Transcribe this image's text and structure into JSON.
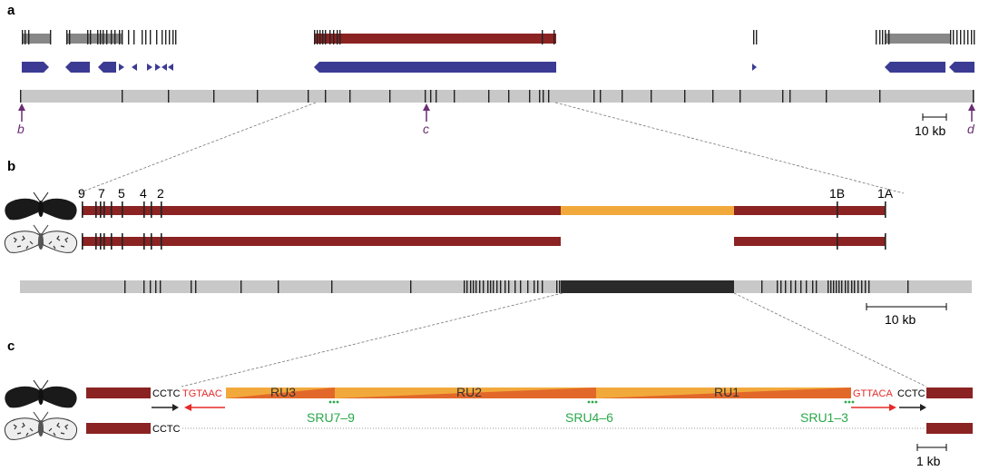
{
  "panels": {
    "a": "a",
    "b": "b",
    "c": "c"
  },
  "panel_a": {
    "markers": {
      "b": "b",
      "c": "c",
      "d": "d"
    },
    "scale_label": "10 kb"
  },
  "panel_b": {
    "exon_labels": {
      "e9": "9",
      "e7": "7",
      "e5": "5",
      "e4": "4",
      "e2": "2",
      "e1b": "1B",
      "e1a": "1A"
    },
    "scale_label": "10 kb"
  },
  "panel_c": {
    "seq": {
      "left_cctc_top": "CCTC",
      "left_tsd": "TGTAAC",
      "right_tsd": "GTTACA",
      "right_cctc": "CCTC",
      "left_cctc_bottom": "CCTC"
    },
    "ru": {
      "ru3": "RU3",
      "ru2": "RU2",
      "ru1": "RU1"
    },
    "sru": {
      "sru79": "SRU7–9",
      "sru46": "SRU4–6",
      "sru13": "SRU1–3"
    },
    "scale_label": "1 kb"
  },
  "colors": {
    "gene_dark_red": "#8b2323",
    "insertion_orange": "#f2a93b",
    "insertion_dark_orange": "#e2682a",
    "chromosome_grey": "#c8c8c8",
    "arrow_blue": "#3b3b94",
    "marker_purple": "#6b2c72",
    "tsd_red": "#e52a2a",
    "sru_green": "#2aa84a"
  },
  "icons": [
    "moth-carbonaria-icon",
    "moth-typica-icon"
  ]
}
